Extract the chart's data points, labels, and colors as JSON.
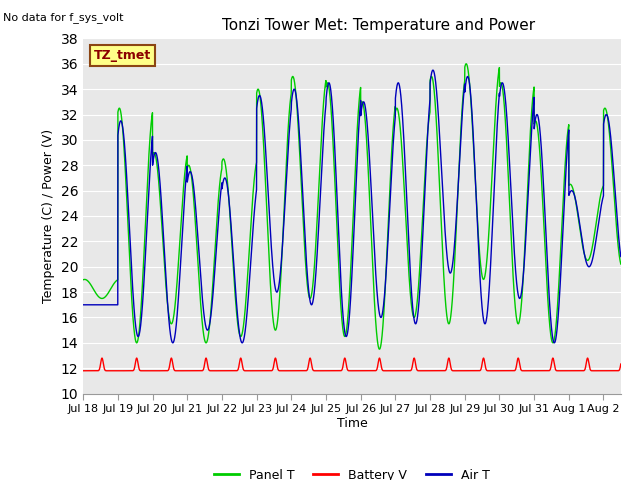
{
  "title": "Tonzi Tower Met: Temperature and Power",
  "xlabel": "Time",
  "ylabel": "Temperature (C) / Power (V)",
  "ylim": [
    10,
    38
  ],
  "no_data_text": "No data for f_sys_volt",
  "box_label": "TZ_tmet",
  "x_tick_labels": [
    "Jul 18",
    "Jul 19",
    "Jul 20",
    "Jul 21",
    "Jul 22",
    "Jul 23",
    "Jul 24",
    "Jul 25",
    "Jul 26",
    "Jul 27",
    "Jul 28",
    "Jul 29",
    "Jul 30",
    "Jul 31",
    "Aug 1",
    "Aug 2"
  ],
  "panel_color": "#00CC00",
  "battery_color": "#FF0000",
  "air_color": "#0000BB",
  "background_color": "#E8E8E8",
  "panel_peaks": [
    19.0,
    32.5,
    29.0,
    28.0,
    28.5,
    34.0,
    35.0,
    34.5,
    33.0,
    32.5,
    35.0,
    36.0,
    34.5,
    31.5,
    26.5,
    32.5
  ],
  "panel_troughs": [
    17.5,
    14.0,
    15.5,
    14.0,
    14.5,
    15.0,
    17.5,
    14.5,
    13.5,
    16.0,
    15.5,
    19.0,
    15.5,
    14.0,
    20.5,
    20.0
  ],
  "air_peaks": [
    17.0,
    31.5,
    29.0,
    27.5,
    27.0,
    33.5,
    34.0,
    34.5,
    33.0,
    34.5,
    35.5,
    35.0,
    34.5,
    32.0,
    26.0,
    32.0
  ],
  "air_troughs": [
    17.0,
    14.5,
    14.0,
    15.0,
    14.0,
    18.0,
    17.0,
    14.5,
    16.0,
    15.5,
    19.5,
    15.5,
    17.5,
    14.0,
    20.0,
    20.0
  ],
  "battery_base": 11.8,
  "battery_peak": 12.8,
  "num_days": 15.5,
  "samples_per_day": 288
}
